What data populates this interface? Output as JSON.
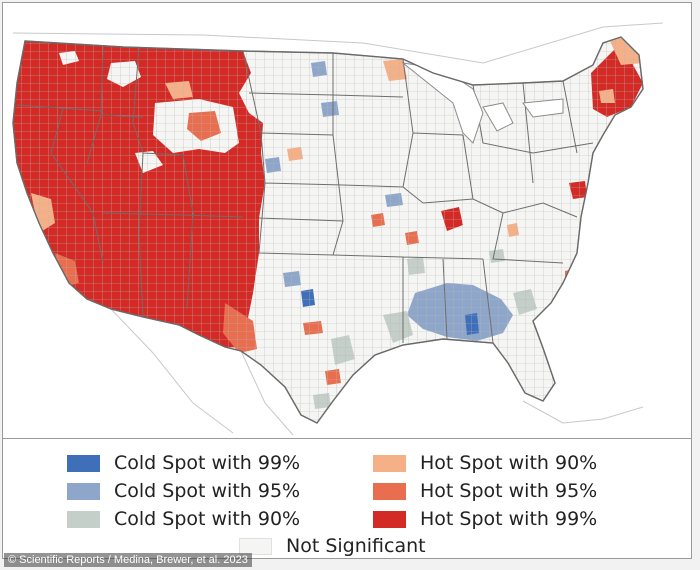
{
  "map": {
    "colors": {
      "cold99": "#3f6fb9",
      "cold95": "#8ea6c9",
      "cold90": "#c5cfc9",
      "hot90": "#f6b088",
      "hot95": "#e86e4f",
      "hot99": "#d42a26",
      "not_significant": "#f5f5f3",
      "border": "#8c8c8c"
    }
  },
  "legend": {
    "items": [
      {
        "key": "cold99",
        "label": "Cold Spot with 99%"
      },
      {
        "key": "cold95",
        "label": "Cold Spot with 95%"
      },
      {
        "key": "cold90",
        "label": "Cold Spot with 90%"
      },
      {
        "key": "hot90",
        "label": "Hot Spot with 90%"
      },
      {
        "key": "hot95",
        "label": "Hot Spot with 95%"
      },
      {
        "key": "hot99",
        "label": "Hot Spot with 99%"
      },
      {
        "key": "not_significant",
        "label": "Not Significant"
      }
    ]
  },
  "credit": "© Scientific Reports / Medina, Brewer, et al. 2023"
}
